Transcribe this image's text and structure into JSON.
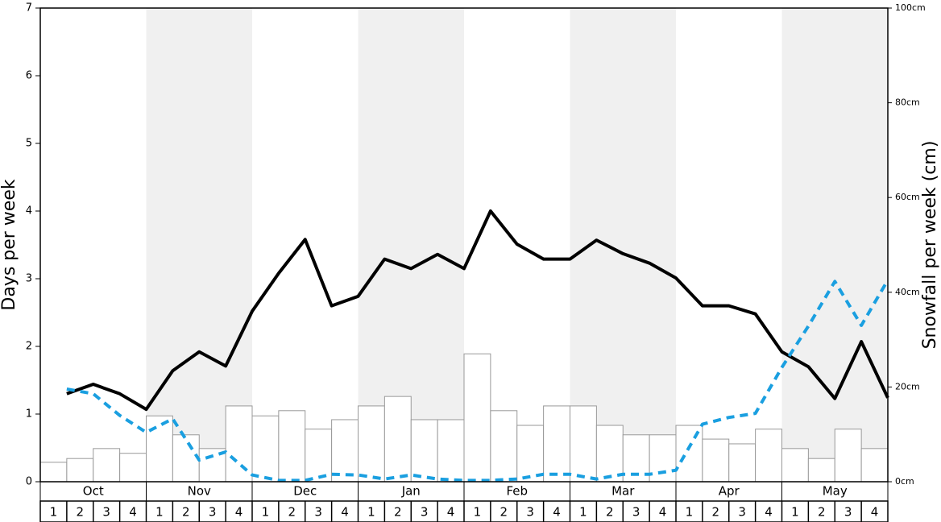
{
  "chart_data": {
    "type": "bar",
    "ylabel": "Days per week",
    "y2label": "Snowfall per week (cm)",
    "months": [
      "Oct",
      "Nov",
      "Dec",
      "Jan",
      "Feb",
      "Mar",
      "Apr",
      "May"
    ],
    "categories": [
      "1",
      "2",
      "3",
      "4",
      "1",
      "2",
      "3",
      "4",
      "1",
      "2",
      "3",
      "4",
      "1",
      "2",
      "3",
      "4",
      "1",
      "2",
      "3",
      "4",
      "1",
      "2",
      "3",
      "4",
      "1",
      "2",
      "3",
      "4",
      "1",
      "2",
      "3",
      "4"
    ],
    "ylim": [
      0,
      7
    ],
    "yticks": [
      0,
      1,
      2,
      3,
      4,
      5,
      6,
      7
    ],
    "y2lim": [
      0,
      100
    ],
    "y2ticks": [
      {
        "value": 0,
        "label": "0cm"
      },
      {
        "value": 20,
        "label": "20cm"
      },
      {
        "value": 40,
        "label": "40cm"
      },
      {
        "value": 60,
        "label": "60cm"
      },
      {
        "value": 80,
        "label": "80cm"
      },
      {
        "value": 100,
        "label": "100cm"
      }
    ],
    "band_color": "#f0f0f0",
    "series": [
      {
        "type": "bar",
        "axis": "y2",
        "color": "#ffffff",
        "values": [
          4.1,
          4.9,
          7.0,
          6.0,
          13.9,
          9.9,
          7.0,
          16.0,
          13.9,
          15.0,
          11.1,
          13.1,
          16.0,
          18.0,
          13.1,
          13.1,
          27.0,
          15.0,
          11.9,
          16.0,
          16.0,
          11.9,
          9.9,
          9.9,
          11.9,
          9.0,
          8.0,
          11.1,
          7.0,
          4.9,
          11.1,
          7.0
        ]
      },
      {
        "type": "line",
        "color": "#000000",
        "values": [
          1.3,
          1.44,
          1.3,
          1.07,
          1.64,
          1.92,
          1.71,
          2.52,
          3.08,
          3.58,
          2.6,
          2.74,
          3.29,
          3.15,
          3.36,
          3.15,
          4.0,
          3.51,
          3.29,
          3.29,
          3.57,
          3.37,
          3.23,
          3.01,
          2.6,
          2.6,
          2.48,
          1.92,
          1.7,
          1.23,
          2.07,
          1.24
        ]
      },
      {
        "type": "line",
        "color": "#1a9fe0",
        "dashed": true,
        "values": [
          1.37,
          1.3,
          0.98,
          0.73,
          0.93,
          0.32,
          0.44,
          0.1,
          0.02,
          0.02,
          0.11,
          0.1,
          0.04,
          0.1,
          0.04,
          0.02,
          0.02,
          0.04,
          0.11,
          0.11,
          0.04,
          0.11,
          0.11,
          0.17,
          0.85,
          0.95,
          1.01,
          1.69,
          2.3,
          2.96,
          2.31,
          2.98
        ]
      }
    ]
  }
}
